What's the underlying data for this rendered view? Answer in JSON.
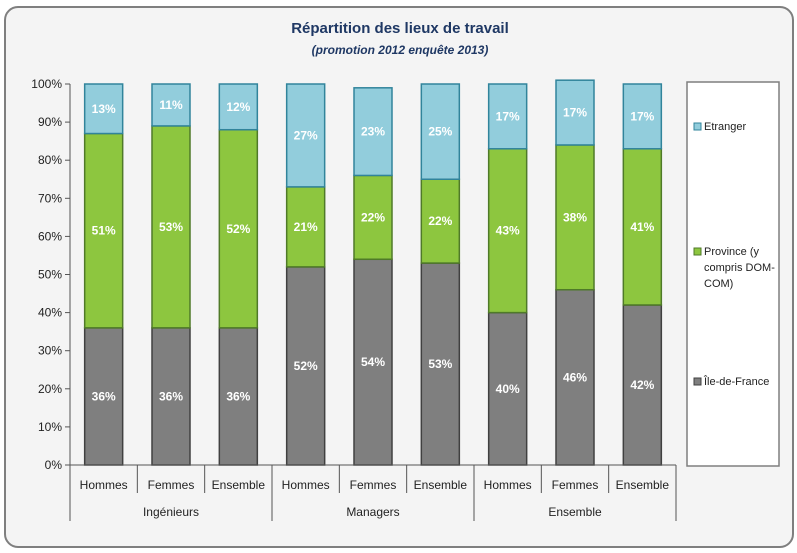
{
  "chart_data": {
    "type": "bar",
    "stacked": true,
    "title": "Répartition des lieux de travail",
    "subtitle": "(promotion 2012 enquête 2013)",
    "yticks": [
      "0%",
      "10%",
      "20%",
      "30%",
      "40%",
      "50%",
      "60%",
      "70%",
      "80%",
      "90%",
      "100%"
    ],
    "ylim": [
      0,
      100
    ],
    "categories": [
      "Hommes",
      "Femmes",
      "Ensemble",
      "Hommes",
      "Femmes",
      "Ensemble",
      "Hommes",
      "Femmes",
      "Ensemble"
    ],
    "groups": [
      {
        "label": "Ingénieurs",
        "start": 0,
        "end": 2
      },
      {
        "label": "Managers",
        "start": 3,
        "end": 5
      },
      {
        "label": "Ensemble",
        "start": 6,
        "end": 8
      }
    ],
    "series": [
      {
        "name": "Île-de-France",
        "color": "#7f7f7f",
        "values": [
          36,
          36,
          36,
          52,
          54,
          53,
          40,
          46,
          42
        ],
        "labels": [
          "36%",
          "36%",
          "36%",
          "52%",
          "54%",
          "53%",
          "40%",
          "46%",
          "42%"
        ]
      },
      {
        "name": "Province (y compris DOM-COM)",
        "color": "#8dc63f",
        "values": [
          51,
          53,
          52,
          21,
          22,
          22,
          43,
          38,
          41
        ],
        "labels": [
          "51%",
          "53%",
          "52%",
          "21%",
          "22%",
          "22%",
          "43%",
          "38%",
          "41%"
        ]
      },
      {
        "name": "Etranger",
        "color": "#92cddc",
        "values": [
          13,
          11,
          12,
          27,
          23,
          25,
          17,
          17,
          17
        ],
        "labels": [
          "13%",
          "11%",
          "12%",
          "27%",
          "23%",
          "25%",
          "17%",
          "17%",
          "17%"
        ]
      }
    ],
    "legend": {
      "position": "right",
      "entries": [
        {
          "lines": [
            "Etranger"
          ],
          "color": "#92cddc",
          "border": "#31849b"
        },
        {
          "lines": [
            "Province (y",
            "compris DOM-",
            "COM)"
          ],
          "color": "#8dc63f",
          "border": "#4f7a28"
        },
        {
          "lines": [
            "Île-de-France"
          ],
          "color": "#7f7f7f",
          "border": "#404040"
        }
      ]
    },
    "grid": false
  }
}
